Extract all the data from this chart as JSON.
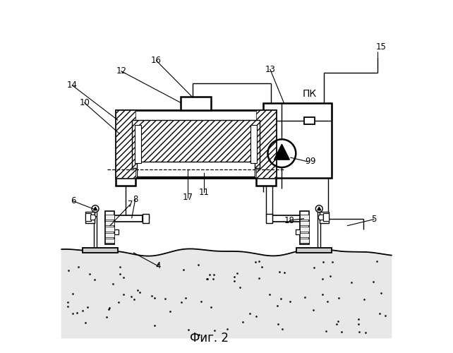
{
  "bg_color": "#ffffff",
  "line_color": "#000000",
  "title": "Фиг. 2",
  "pk_label": "ПК"
}
